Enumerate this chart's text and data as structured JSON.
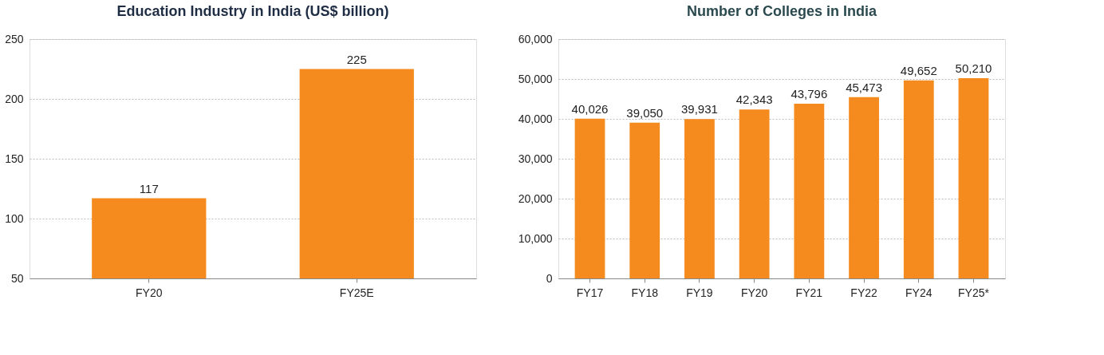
{
  "chart_data": [
    {
      "type": "bar",
      "title": "Education Industry in India (US$ billion)",
      "categories": [
        "FY20",
        "FY25E"
      ],
      "values": [
        117,
        225
      ],
      "color": "#f58a1f",
      "ylim": [
        50,
        250
      ],
      "yticks": [
        50,
        100,
        150,
        200,
        250
      ],
      "grid": "y",
      "data_labels": true
    },
    {
      "type": "bar",
      "title": "Number of Colleges in India",
      "categories": [
        "FY17",
        "FY18",
        "FY19",
        "FY20",
        "FY21",
        "FY22",
        "FY24",
        "FY25*"
      ],
      "values": [
        40026,
        39050,
        39931,
        42343,
        43796,
        45473,
        49652,
        50210
      ],
      "value_labels": [
        "40,026",
        "39,050",
        "39,931",
        "42,343",
        "43,796",
        "45,473",
        "49,652",
        "50,210"
      ],
      "color": "#f58a1f",
      "ylim": [
        0,
        60000
      ],
      "yticks": [
        0,
        {
          "value": 10000,
          "label": "10,000"
        },
        {
          "value": 20000,
          "label": "20,000"
        },
        {
          "value": 30000,
          "label": "30,000"
        },
        {
          "value": 40000,
          "label": "40,000"
        },
        {
          "value": 50000,
          "label": "50,000"
        },
        {
          "value": 60000,
          "label": "60,000"
        }
      ],
      "grid": "y"
    }
  ]
}
